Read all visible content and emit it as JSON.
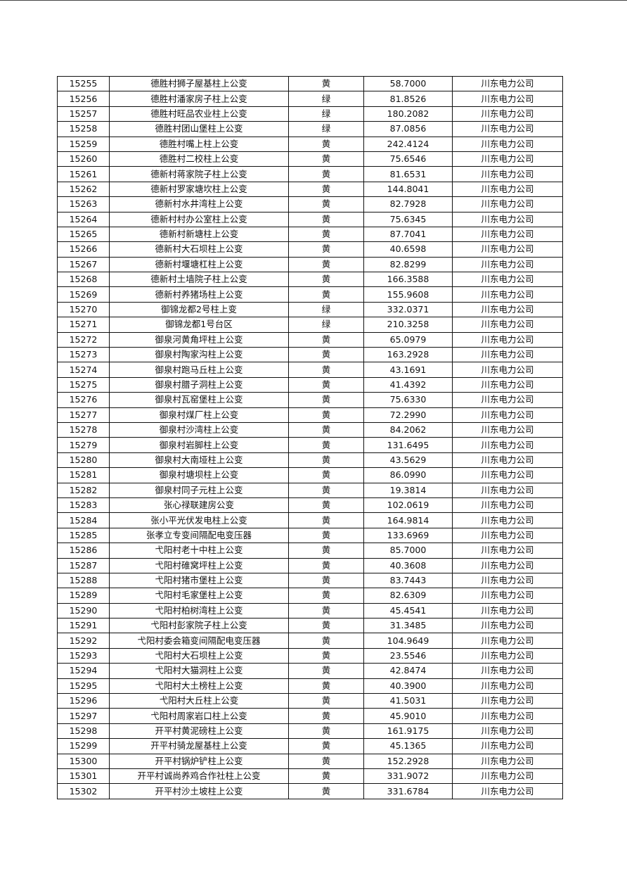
{
  "table": {
    "rows": [
      [
        "15255",
        "德胜村狮子屋基柱上公变",
        "黄",
        "58.7000",
        "川东电力公司"
      ],
      [
        "15256",
        "德胜村潘家房子柱上公变",
        "绿",
        "81.8526",
        "川东电力公司"
      ],
      [
        "15257",
        "德胜村旺品农业柱上公变",
        "绿",
        "180.2082",
        "川东电力公司"
      ],
      [
        "15258",
        "德胜村团山堡柱上公变",
        "绿",
        "87.0856",
        "川东电力公司"
      ],
      [
        "15259",
        "德胜村嘴上柱上公变",
        "黄",
        "242.4124",
        "川东电力公司"
      ],
      [
        "15260",
        "德胜村二校柱上公变",
        "黄",
        "75.6546",
        "川东电力公司"
      ],
      [
        "15261",
        "德新村蒋家院子柱上公变",
        "黄",
        "81.6531",
        "川东电力公司"
      ],
      [
        "15262",
        "德新村罗家塘坎柱上公变",
        "黄",
        "144.8041",
        "川东电力公司"
      ],
      [
        "15263",
        "德新村水井湾柱上公变",
        "黄",
        "82.7928",
        "川东电力公司"
      ],
      [
        "15264",
        "德新村村办公室柱上公变",
        "黄",
        "75.6345",
        "川东电力公司"
      ],
      [
        "15265",
        "德新村新塘柱上公变",
        "黄",
        "87.7041",
        "川东电力公司"
      ],
      [
        "15266",
        "德新村大石坝柱上公变",
        "黄",
        "40.6598",
        "川东电力公司"
      ],
      [
        "15267",
        "德新村堰塘杠柱上公变",
        "黄",
        "82.8299",
        "川东电力公司"
      ],
      [
        "15268",
        "德新村土墙院子柱上公变",
        "黄",
        "166.3588",
        "川东电力公司"
      ],
      [
        "15269",
        "德新村养猪场柱上公变",
        "黄",
        "155.9608",
        "川东电力公司"
      ],
      [
        "15270",
        "御锦龙都2号柱上变",
        "绿",
        "332.0371",
        "川东电力公司"
      ],
      [
        "15271",
        "御锦龙都1号台区",
        "绿",
        "210.3258",
        "川东电力公司"
      ],
      [
        "15272",
        "御泉河黄角坪柱上公变",
        "黄",
        "65.0979",
        "川东电力公司"
      ],
      [
        "15273",
        "御泉村陶家沟柱上公变",
        "黄",
        "163.2928",
        "川东电力公司"
      ],
      [
        "15274",
        "御泉村跑马丘柱上公变",
        "黄",
        "43.1691",
        "川东电力公司"
      ],
      [
        "15275",
        "御泉村腊子洞柱上公变",
        "黄",
        "41.4392",
        "川东电力公司"
      ],
      [
        "15276",
        "御泉村瓦窑堡柱上公变",
        "黄",
        "75.6330",
        "川东电力公司"
      ],
      [
        "15277",
        "御泉村煤厂柱上公变",
        "黄",
        "72.2990",
        "川东电力公司"
      ],
      [
        "15278",
        "御泉村沙湾柱上公变",
        "黄",
        "84.2062",
        "川东电力公司"
      ],
      [
        "15279",
        "御泉村岩脚柱上公变",
        "黄",
        "131.6495",
        "川东电力公司"
      ],
      [
        "15280",
        "御泉村大南垭柱上公变",
        "黄",
        "43.5629",
        "川东电力公司"
      ],
      [
        "15281",
        "御泉村塘坝柱上公变",
        "黄",
        "86.0990",
        "川东电力公司"
      ],
      [
        "15282",
        "御泉村同子元柱上公变",
        "黄",
        "19.3814",
        "川东电力公司"
      ],
      [
        "15283",
        "张心禄联建房公变",
        "黄",
        "102.0619",
        "川东电力公司"
      ],
      [
        "15284",
        "张小平光伏发电柱上公变",
        "黄",
        "164.9814",
        "川东电力公司"
      ],
      [
        "15285",
        "张孝立专变间隔配电变压器",
        "黄",
        "133.6969",
        "川东电力公司"
      ],
      [
        "15286",
        "弋阳村老十中柱上公变",
        "黄",
        "85.7000",
        "川东电力公司"
      ],
      [
        "15287",
        "弋阳村碓窝坪柱上公变",
        "黄",
        "40.3608",
        "川东电力公司"
      ],
      [
        "15288",
        "弋阳村猪市堡柱上公变",
        "黄",
        "83.7443",
        "川东电力公司"
      ],
      [
        "15289",
        "弋阳村毛家堡柱上公变",
        "黄",
        "82.6309",
        "川东电力公司"
      ],
      [
        "15290",
        "弋阳村柏树湾柱上公变",
        "黄",
        "45.4541",
        "川东电力公司"
      ],
      [
        "15291",
        "弋阳村彭家院子柱上公变",
        "黄",
        "31.3485",
        "川东电力公司"
      ],
      [
        "15292",
        "弋阳村委会箱变间隔配电变压器",
        "黄",
        "104.9649",
        "川东电力公司"
      ],
      [
        "15293",
        "弋阳村大石坝柱上公变",
        "黄",
        "23.5546",
        "川东电力公司"
      ],
      [
        "15294",
        "弋阳村大猫洞柱上公变",
        "黄",
        "42.8474",
        "川东电力公司"
      ],
      [
        "15295",
        "弋阳村大土榜柱上公变",
        "黄",
        "40.3900",
        "川东电力公司"
      ],
      [
        "15296",
        "弋阳村大丘柱上公变",
        "黄",
        "41.5031",
        "川东电力公司"
      ],
      [
        "15297",
        "弋阳村周家岩口柱上公变",
        "黄",
        "45.9010",
        "川东电力公司"
      ],
      [
        "15298",
        "开平村黄泥磅柱上公变",
        "黄",
        "161.9175",
        "川东电力公司"
      ],
      [
        "15299",
        "开平村骑龙屋基柱上公变",
        "黄",
        "45.1365",
        "川东电力公司"
      ],
      [
        "15300",
        "开平村锅炉铲柱上公变",
        "黄",
        "152.2928",
        "川东电力公司"
      ],
      [
        "15301",
        "开平村诚尚养鸡合作社柱上公变",
        "黄",
        "331.9072",
        "川东电力公司"
      ],
      [
        "15302",
        "开平村沙土坡柱上公变",
        "黄",
        "331.6784",
        "川东电力公司"
      ]
    ]
  }
}
